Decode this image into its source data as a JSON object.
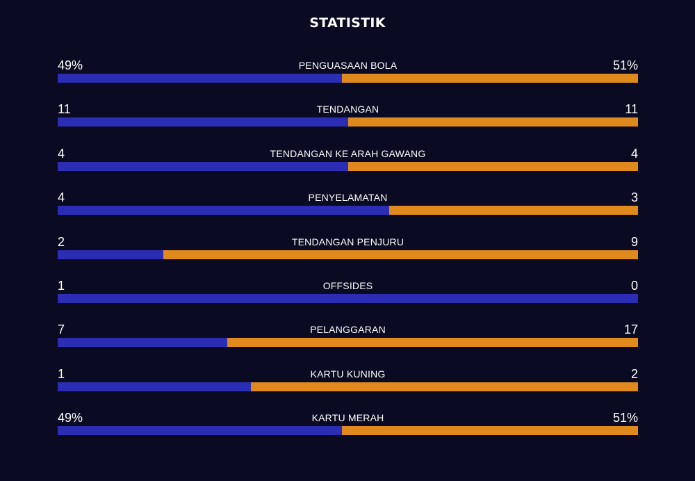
{
  "title": "STATISTIK",
  "colors": {
    "background": "#0a0a22",
    "home": "#2b2eb5",
    "away": "#e08a1e"
  },
  "stats": [
    {
      "label": "PENGUASAAN BOLA",
      "left": "49%",
      "right": "51%",
      "home_share": 0.49
    },
    {
      "label": "TENDANGAN",
      "left": "11",
      "right": "11",
      "home_share": 0.5
    },
    {
      "label": "TENDANGAN KE ARAH GAWANG",
      "left": "4",
      "right": "4",
      "home_share": 0.5
    },
    {
      "label": "PENYELAMATAN",
      "left": "4",
      "right": "3",
      "home_share": 0.571
    },
    {
      "label": "TENDANGAN PENJURU",
      "left": "2",
      "right": "9",
      "home_share": 0.182
    },
    {
      "label": "OFFSIDES",
      "left": "1",
      "right": "0",
      "home_share": 1.0
    },
    {
      "label": "PELANGGARAN",
      "left": "7",
      "right": "17",
      "home_share": 0.292
    },
    {
      "label": "KARTU KUNING",
      "left": "1",
      "right": "2",
      "home_share": 0.333
    },
    {
      "label": "KARTU MERAH",
      "left": "49%",
      "right": "51%",
      "home_share": 0.49
    }
  ]
}
